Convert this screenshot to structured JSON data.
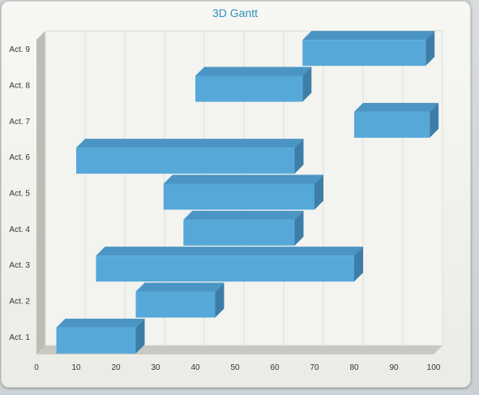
{
  "chart_data": {
    "type": "bar",
    "orientation": "horizontal",
    "style": "3d-gantt",
    "title": "3D Gantt",
    "categories": [
      "Act. 1",
      "Act. 2",
      "Act. 3",
      "Act. 4",
      "Act. 5",
      "Act. 6",
      "Act. 7",
      "Act. 8",
      "Act. 9"
    ],
    "series": [
      {
        "ranges": [
          [
            5,
            25
          ],
          [
            25,
            45
          ],
          [
            15,
            80
          ],
          [
            37,
            65
          ],
          [
            32,
            70
          ],
          [
            10,
            65
          ],
          [
            80,
            99
          ],
          [
            40,
            67
          ],
          [
            67,
            98
          ]
        ]
      }
    ],
    "xlim": [
      0,
      100
    ],
    "xticks": [
      0,
      10,
      20,
      30,
      40,
      50,
      60,
      70,
      80,
      90,
      100
    ],
    "grid": true,
    "legend": "none",
    "colors": {
      "bar_front": "#56a8d8",
      "bar_top": "#4a95c4",
      "bar_side": "#3d7ea8",
      "title": "#2e8fbd"
    }
  }
}
